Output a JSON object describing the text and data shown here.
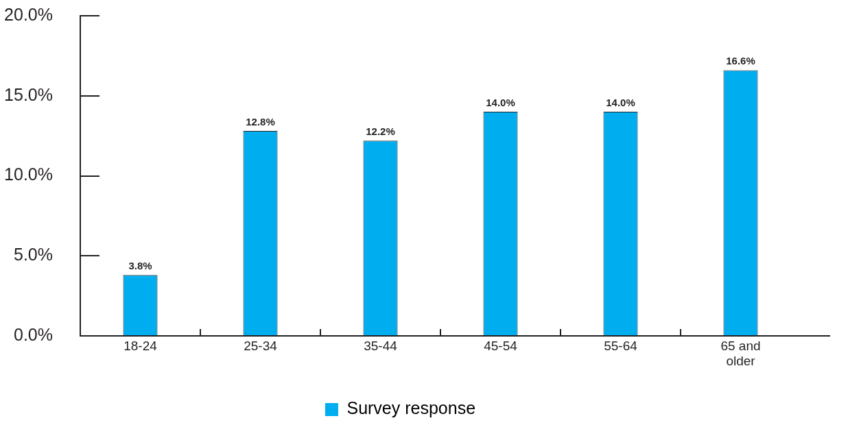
{
  "chart_data": {
    "type": "bar",
    "categories": [
      "18-24",
      "25-34",
      "35-44",
      "45-54",
      "55-64",
      "65 and older"
    ],
    "series": [
      {
        "name": "Survey response",
        "color": "#00aeef",
        "values": [
          3.8,
          12.8,
          12.2,
          14.0,
          14.0,
          16.6
        ],
        "value_labels": [
          "3.8%",
          "12.8%",
          "12.2%",
          "14.0%",
          "14.0%",
          "16.6%"
        ]
      }
    ],
    "ylim": [
      0,
      20
    ],
    "yticks": [
      {
        "value": 0,
        "label": "0.0%"
      },
      {
        "value": 5,
        "label": "5.0%"
      },
      {
        "value": 10,
        "label": "10.0%"
      },
      {
        "value": 15,
        "label": "15.0%"
      },
      {
        "value": 20,
        "label": "20.0%"
      }
    ],
    "legend": "bottom"
  }
}
